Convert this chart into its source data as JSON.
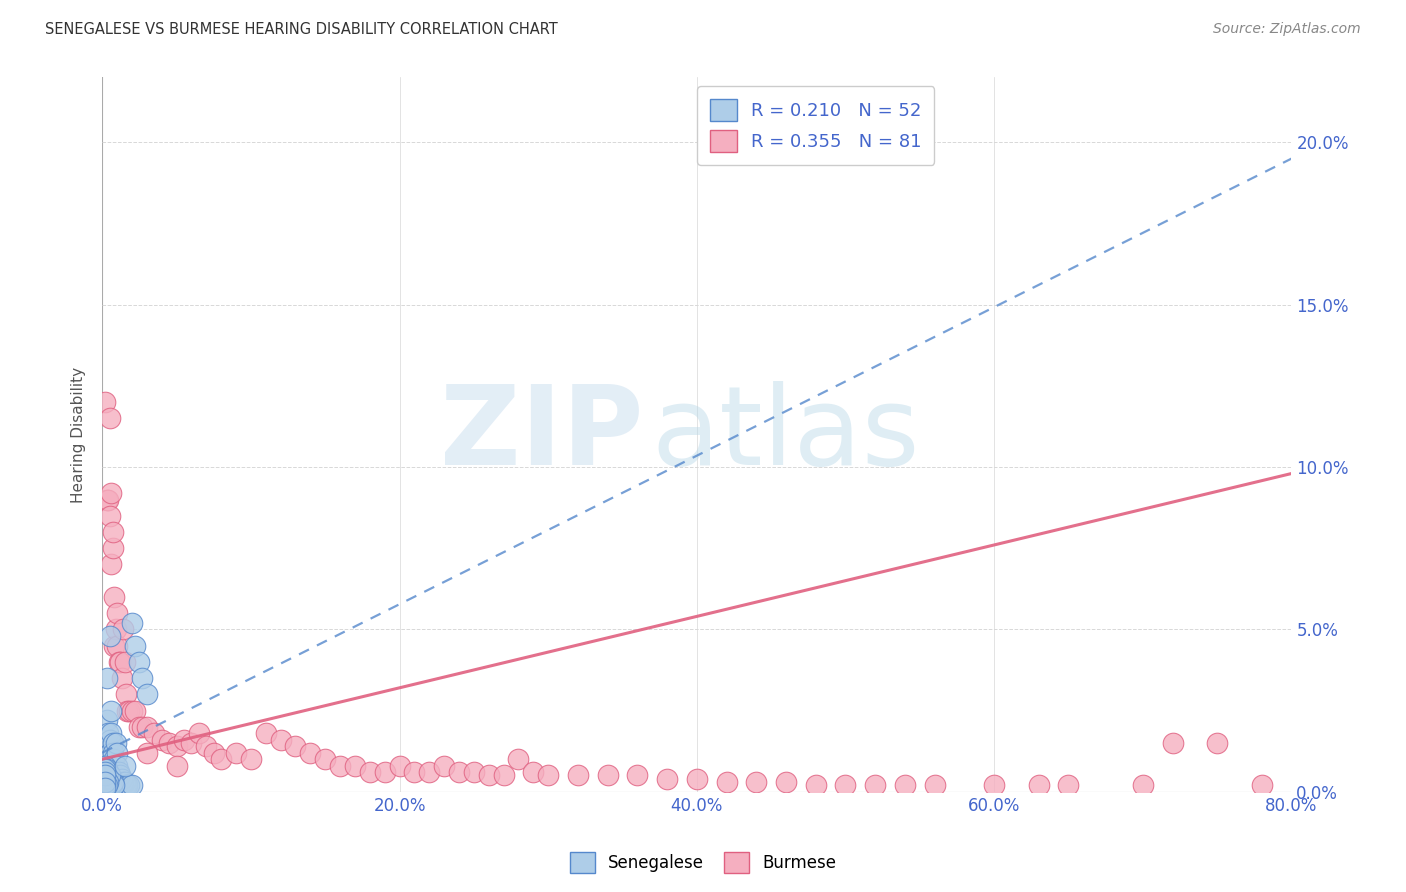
{
  "title": "SENEGALESE VS BURMESE HEARING DISABILITY CORRELATION CHART",
  "source": "Source: ZipAtlas.com",
  "ylabel": "Hearing Disability",
  "x_ticks": [
    0,
    20,
    40,
    60,
    80
  ],
  "x_tick_labels": [
    "0.0%",
    "20.0%",
    "40.0%",
    "60.0%",
    "80.0%"
  ],
  "y_ticks": [
    0,
    5,
    10,
    15,
    20
  ],
  "y_tick_labels": [
    "0.0%",
    "5.0%",
    "10.0%",
    "15.0%",
    "20.0%"
  ],
  "xlim": [
    0,
    80
  ],
  "ylim": [
    0,
    22
  ],
  "background_color": "#ffffff",
  "grid_color": "#d8d8d8",
  "watermark_zip": "ZIP",
  "watermark_atlas": "atlas",
  "senegalese_color": "#aecde8",
  "burmese_color": "#f5afc0",
  "senegalese_edge_color": "#5588cc",
  "burmese_edge_color": "#e06080",
  "senegalese_R": 0.21,
  "senegalese_N": 52,
  "burmese_R": 0.355,
  "burmese_N": 81,
  "legend_text_color": "#4466cc",
  "title_color": "#333333",
  "source_color": "#888888",
  "ylabel_color": "#555555",
  "sen_line_x": [
    0,
    80
  ],
  "sen_line_y": [
    1.2,
    19.5
  ],
  "bur_line_x": [
    0,
    80
  ],
  "bur_line_y": [
    1.0,
    9.8
  ],
  "senegalese_x": [
    0.3,
    0.3,
    0.4,
    0.5,
    0.5,
    0.5,
    0.6,
    0.6,
    0.7,
    0.7,
    0.8,
    0.8,
    0.9,
    1.0,
    1.0,
    1.1,
    1.2,
    1.3,
    1.4,
    1.5,
    1.6,
    1.7,
    1.8,
    2.0,
    2.0,
    2.2,
    2.5,
    2.7,
    3.0,
    0.2,
    0.3,
    0.4,
    0.5,
    0.6,
    0.7,
    0.8,
    0.2,
    0.3,
    0.4,
    0.5,
    0.2,
    0.3,
    0.4,
    0.2,
    0.3,
    0.2,
    0.2,
    0.2,
    0.2,
    0.2,
    0.2,
    1.5
  ],
  "senegalese_y": [
    3.5,
    2.2,
    1.8,
    1.6,
    1.2,
    4.8,
    2.5,
    1.8,
    1.5,
    1.2,
    1.0,
    0.8,
    1.5,
    1.2,
    0.8,
    0.6,
    0.5,
    0.4,
    0.3,
    0.3,
    0.2,
    0.2,
    0.2,
    0.2,
    5.2,
    4.5,
    4.0,
    3.5,
    3.0,
    0.5,
    0.4,
    0.3,
    0.2,
    0.2,
    0.3,
    0.2,
    0.8,
    0.7,
    0.6,
    0.5,
    0.4,
    0.3,
    0.3,
    0.2,
    0.2,
    0.2,
    0.7,
    0.6,
    0.5,
    0.3,
    0.1,
    0.8
  ],
  "burmese_x": [
    0.2,
    0.3,
    0.4,
    0.5,
    0.5,
    0.6,
    0.6,
    0.7,
    0.7,
    0.8,
    0.8,
    0.9,
    1.0,
    1.0,
    1.1,
    1.2,
    1.3,
    1.4,
    1.5,
    1.6,
    1.7,
    1.8,
    2.0,
    2.2,
    2.5,
    2.7,
    3.0,
    3.5,
    4.0,
    4.5,
    5.0,
    5.5,
    6.0,
    6.5,
    7.0,
    7.5,
    8.0,
    9.0,
    10.0,
    11.0,
    12.0,
    13.0,
    14.0,
    15.0,
    16.0,
    17.0,
    18.0,
    19.0,
    20.0,
    21.0,
    22.0,
    23.0,
    24.0,
    25.0,
    26.0,
    27.0,
    28.0,
    29.0,
    30.0,
    32.0,
    34.0,
    36.0,
    38.0,
    40.0,
    42.0,
    44.0,
    46.0,
    48.0,
    50.0,
    52.0,
    54.0,
    56.0,
    60.0,
    63.0,
    65.0,
    70.0,
    72.0,
    75.0,
    78.0,
    3.0,
    5.0
  ],
  "burmese_y": [
    12.0,
    9.0,
    9.0,
    11.5,
    8.5,
    7.0,
    9.2,
    7.5,
    8.0,
    6.0,
    4.5,
    5.0,
    4.5,
    5.5,
    4.0,
    4.0,
    3.5,
    5.0,
    4.0,
    3.0,
    2.5,
    2.5,
    2.5,
    2.5,
    2.0,
    2.0,
    2.0,
    1.8,
    1.6,
    1.5,
    1.4,
    1.6,
    1.5,
    1.8,
    1.4,
    1.2,
    1.0,
    1.2,
    1.0,
    1.8,
    1.6,
    1.4,
    1.2,
    1.0,
    0.8,
    0.8,
    0.6,
    0.6,
    0.8,
    0.6,
    0.6,
    0.8,
    0.6,
    0.6,
    0.5,
    0.5,
    1.0,
    0.6,
    0.5,
    0.5,
    0.5,
    0.5,
    0.4,
    0.4,
    0.3,
    0.3,
    0.3,
    0.2,
    0.2,
    0.2,
    0.2,
    0.2,
    0.2,
    0.2,
    0.2,
    0.2,
    1.5,
    1.5,
    0.2,
    1.2,
    0.8
  ]
}
